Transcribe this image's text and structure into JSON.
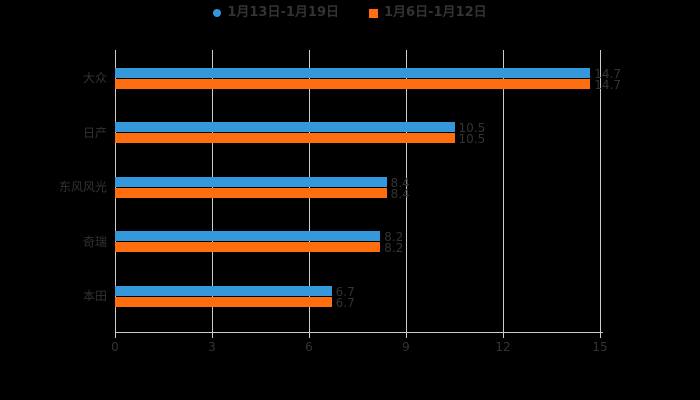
{
  "page": {
    "background_color": "#000000",
    "text_color": "#333333"
  },
  "legend": {
    "items": [
      {
        "label": "1月13日-1月19日",
        "marker": "circle",
        "marker_name": "blue-circle-marker",
        "color": "#3498db"
      },
      {
        "label": "1月6日-1月12日",
        "marker": "square",
        "marker_name": "orange-square-marker",
        "color": "#ff6e0e"
      }
    ]
  },
  "chart_data": {
    "type": "bar",
    "orientation": "horizontal",
    "title": "",
    "xlabel": "",
    "ylabel": "",
    "categories": [
      "大众",
      "日产",
      "东风风光",
      "奇瑞",
      "本田"
    ],
    "series": [
      {
        "name": "1月13日-1月19日",
        "color": "#3498db",
        "values": [
          14.7,
          10.5,
          8.4,
          8.2,
          6.7
        ]
      },
      {
        "name": "1月6日-1月12日",
        "color": "#ff6e0e",
        "values": [
          14.7,
          10.5,
          8.4,
          8.2,
          6.7
        ]
      }
    ],
    "x_ticks": [
      "0",
      "3",
      "6",
      "9",
      "12",
      "15"
    ],
    "x_tick_values": [
      0,
      3,
      6,
      9,
      12,
      15
    ],
    "xlim": [
      0,
      15
    ],
    "grid": true,
    "gridline_color": "#cccccc",
    "axis_line_color": "#cccccc",
    "axis_label_color": "#333333",
    "value_label_color": "#333333",
    "value_labels": [
      [
        "14.7",
        "10.5",
        "8.4",
        "8.2",
        "6.7"
      ],
      [
        "14.7",
        "10.5",
        "8.4",
        "8.2",
        "6.7"
      ]
    ],
    "legend_position": "top"
  }
}
